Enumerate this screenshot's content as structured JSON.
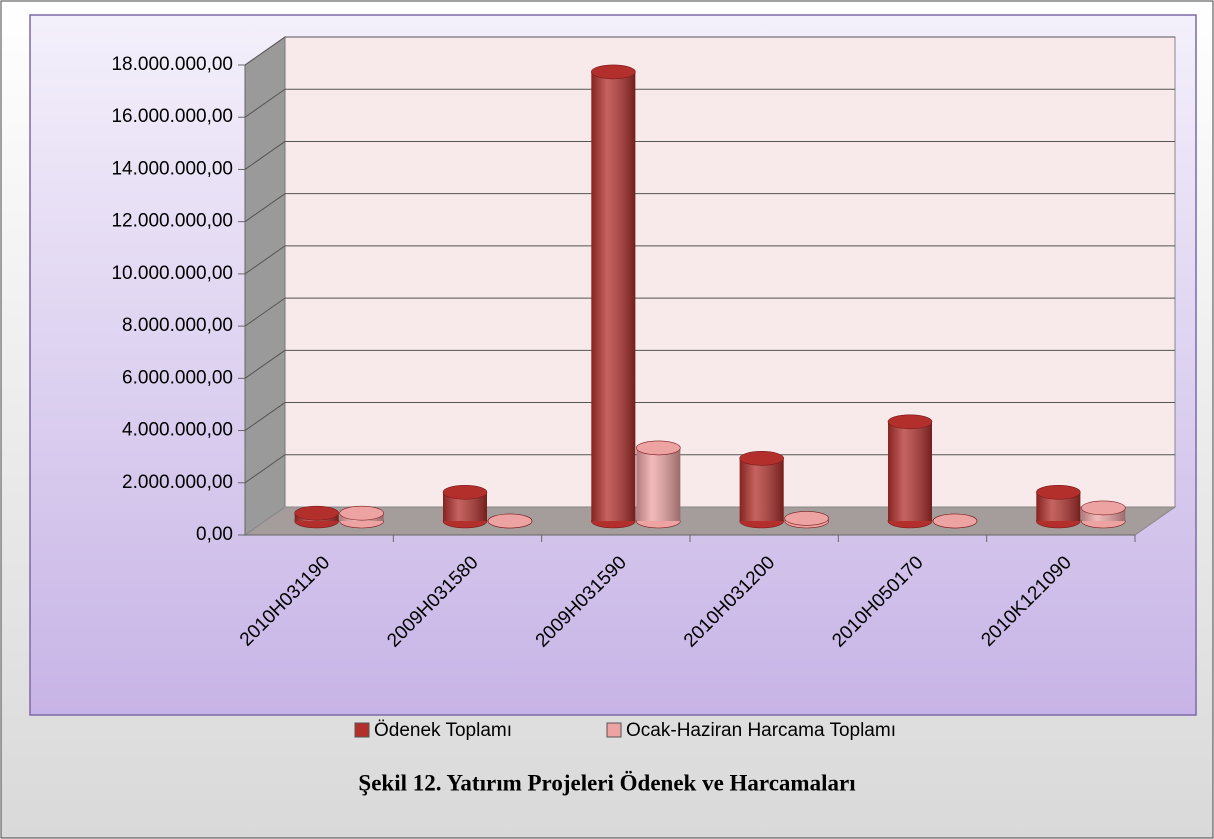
{
  "chart_data": {
    "type": "bar3d",
    "title": "Şekil 12. Yatırım Projeleri Ödenek ve Harcamaları",
    "categories": [
      "2010H031190",
      "2009H031580",
      "2009H031590",
      "2010H031200",
      "2010H050170",
      "2010K121090"
    ],
    "series": [
      {
        "name": "Ödenek Toplamı",
        "color": "#b22f2c",
        "values": [
          300000,
          1100000,
          17200000,
          2400000,
          3800000,
          1100000
        ]
      },
      {
        "name": "Ocak-Haziran Harcama Toplamı",
        "color": "#eea3a3",
        "values": [
          300000,
          0,
          2800000,
          100000,
          0,
          500000
        ]
      }
    ],
    "ylim": [
      0,
      18000000
    ],
    "yticks": [
      {
        "value": 0,
        "label": "0,00"
      },
      {
        "value": 2000000,
        "label": "2.000.000,00"
      },
      {
        "value": 4000000,
        "label": "4.000.000,00"
      },
      {
        "value": 6000000,
        "label": "6.000.000,00"
      },
      {
        "value": 8000000,
        "label": "8.000.000,00"
      },
      {
        "value": 10000000,
        "label": "10.000.000,00"
      },
      {
        "value": 12000000,
        "label": "12.000.000,00"
      },
      {
        "value": 14000000,
        "label": "14.000.000,00"
      },
      {
        "value": 16000000,
        "label": "16.000.000,00"
      },
      {
        "value": 18000000,
        "label": "18.000.000,00"
      }
    ],
    "grid": true
  }
}
